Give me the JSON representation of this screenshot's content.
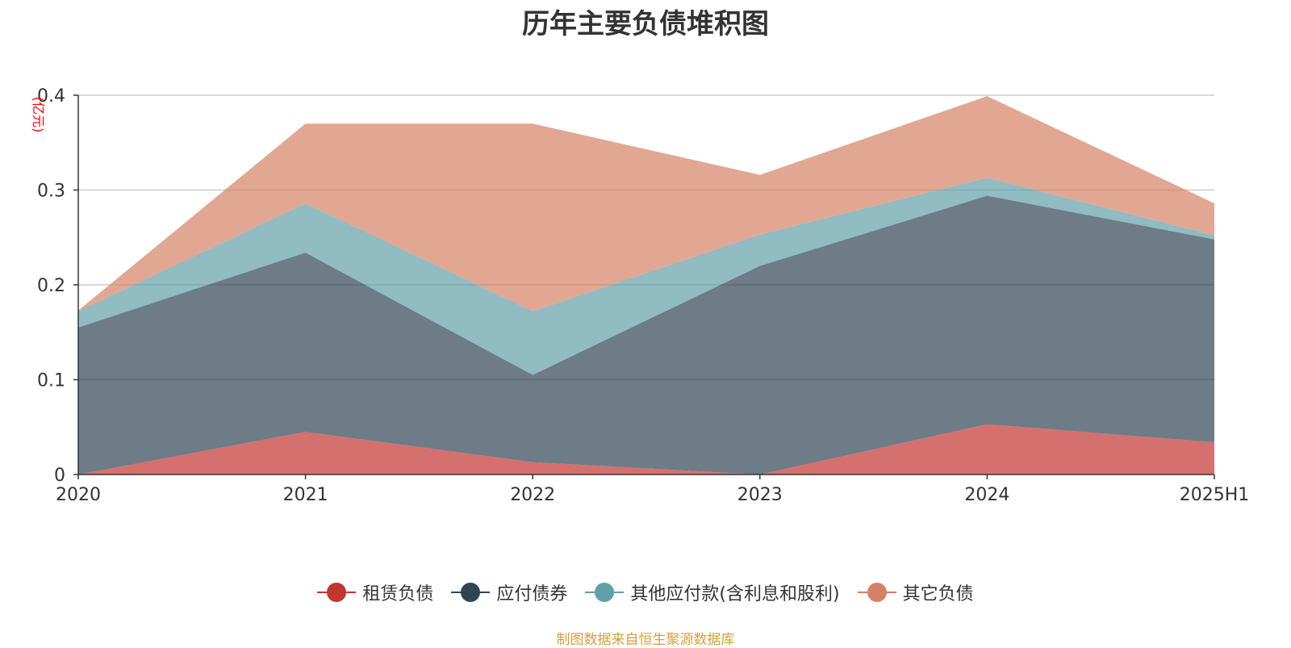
{
  "chart_data": {
    "type": "area",
    "stacked": true,
    "title": "历年主要负债堆积图",
    "ylabel": "(亿元)",
    "xlabel": "",
    "categories": [
      "2020",
      "2021",
      "2022",
      "2023",
      "2024",
      "2025H1"
    ],
    "ylim": [
      0,
      0.4
    ],
    "yticks": [
      0,
      0.1,
      0.2,
      0.3,
      0.4
    ],
    "ytick_labels": [
      "0",
      "0.1",
      "0.2",
      "0.3",
      "0.4"
    ],
    "grid": true,
    "legend_position": "bottom",
    "series": [
      {
        "name": "租赁负债",
        "color": "#c23531",
        "values": [
          0.0,
          0.045,
          0.013,
          0.0,
          0.053,
          0.034
        ]
      },
      {
        "name": "应付债券",
        "color": "#2f4554",
        "values": [
          0.155,
          0.189,
          0.092,
          0.22,
          0.241,
          0.214
        ]
      },
      {
        "name": "其他应付款(含利息和股利)",
        "color": "#61a0a8",
        "values": [
          0.017,
          0.052,
          0.067,
          0.033,
          0.019,
          0.004
        ]
      },
      {
        "name": "其它负债",
        "color": "#d48265",
        "values": [
          0.001,
          0.084,
          0.198,
          0.063,
          0.086,
          0.034
        ]
      }
    ]
  },
  "source_text": "制图数据来自恒生聚源数据库"
}
